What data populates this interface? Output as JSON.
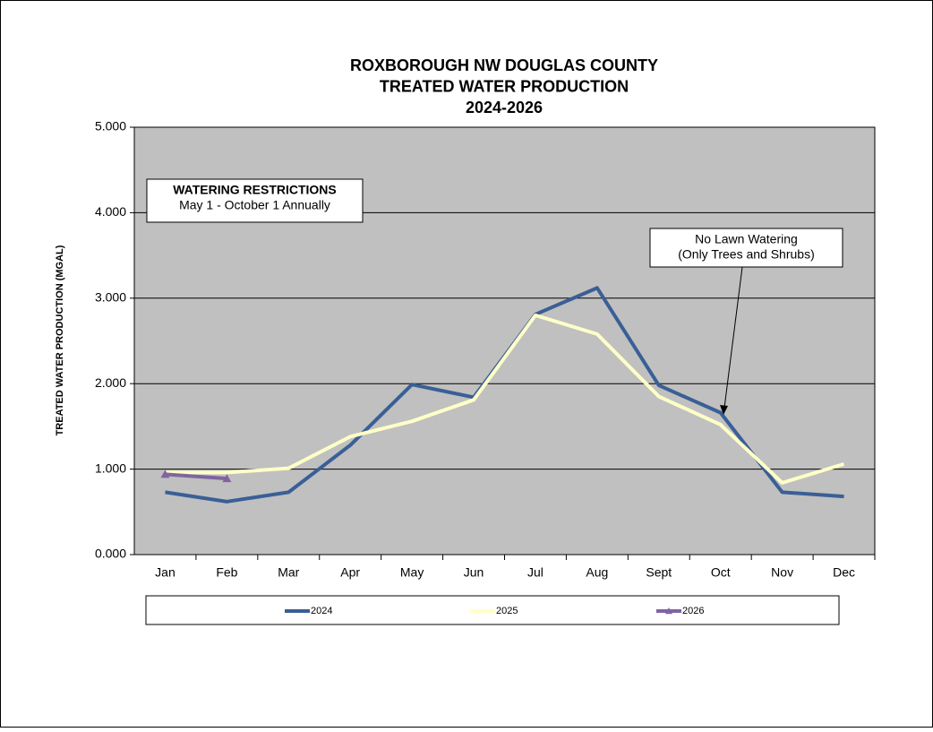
{
  "chart_data": {
    "type": "line",
    "title_lines": [
      "ROXBOROUGH NW DOUGLAS COUNTY",
      "TREATED WATER PRODUCTION",
      "2024-2026"
    ],
    "y_label": "TREATED WATER PRODUCTION (MGAL)",
    "categories": [
      "Jan",
      "Feb",
      "Mar",
      "Apr",
      "May",
      "Jun",
      "Jul",
      "Aug",
      "Sept",
      "Oct",
      "Nov",
      "Dec"
    ],
    "series": [
      {
        "name": "2024",
        "color": "#3a5f96",
        "values": [
          0.73,
          0.62,
          0.73,
          1.28,
          1.99,
          1.84,
          2.81,
          3.12,
          1.98,
          1.66,
          0.73,
          0.68
        ]
      },
      {
        "name": "2025",
        "color": "#ffffc8",
        "values": [
          0.96,
          0.96,
          1.01,
          1.38,
          1.56,
          1.81,
          2.8,
          2.58,
          1.85,
          1.52,
          0.84,
          1.06
        ]
      },
      {
        "name": "2026",
        "color": "#8064a2",
        "marker": "triangle",
        "values": [
          0.94,
          0.89,
          null,
          null,
          null,
          null,
          null,
          null,
          null,
          null,
          null,
          null
        ]
      }
    ],
    "ylim": [
      0,
      5
    ],
    "yticks": [
      {
        "value": 0,
        "label": "0.000"
      },
      {
        "value": 1,
        "label": "1.000"
      },
      {
        "value": 2,
        "label": "2.000"
      },
      {
        "value": 3,
        "label": "3.000"
      },
      {
        "value": 4,
        "label": "4.000"
      },
      {
        "value": 5,
        "label": "5.000"
      }
    ],
    "grid": true,
    "plot_background": "#c0c0c0",
    "legend": "bottom",
    "annotations": [
      {
        "lines": [
          "WATERING RESTRICTIONS",
          "May 1 - October 1 Annually"
        ]
      },
      {
        "lines": [
          "No Lawn Watering",
          "(Only Trees and Shrubs)"
        ]
      }
    ]
  }
}
